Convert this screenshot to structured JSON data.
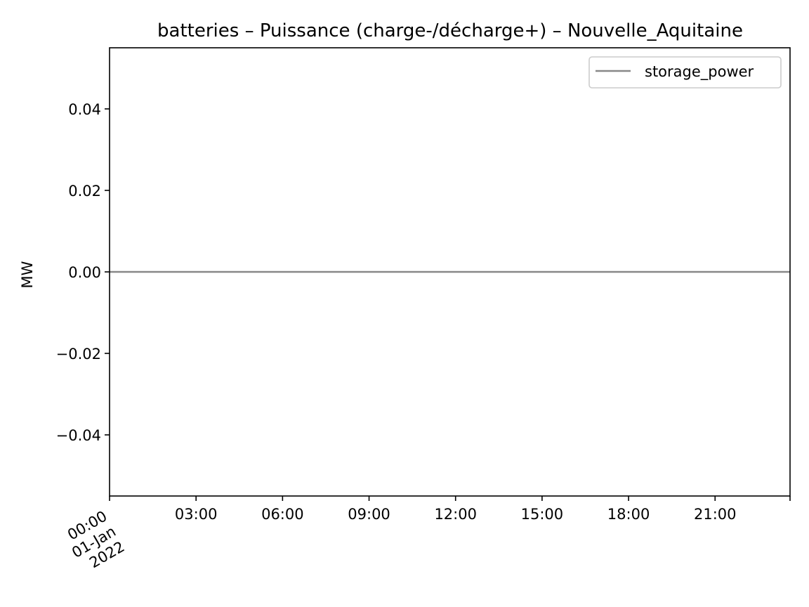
{
  "chart_data": {
    "type": "line",
    "title": "batteries – Puissance (charge-/décharge+) – Nouvelle_Aquitaine",
    "xlabel": "",
    "ylabel": "MW",
    "x_tick_labels": [
      [
        "00:00",
        "01-Jan",
        "2022"
      ],
      [
        "03:00"
      ],
      [
        "06:00"
      ],
      [
        "09:00"
      ],
      [
        "12:00"
      ],
      [
        "15:00"
      ],
      [
        "18:00"
      ],
      [
        "21:00"
      ]
    ],
    "x_tick_hours": [
      0,
      3,
      6,
      9,
      12,
      15,
      18,
      21
    ],
    "xlim_hours": [
      0,
      23.6
    ],
    "xlim_dates": [
      "2022-01-01 00:00",
      "2022-01-01 23:36"
    ],
    "y_ticks": [
      0.04,
      0.02,
      0.0,
      -0.02,
      -0.04
    ],
    "y_tick_labels": [
      "0.04",
      "0.02",
      "0.00",
      "−0.02",
      "−0.04"
    ],
    "ylim": [
      -0.055,
      0.055
    ],
    "grid": false,
    "legend_position": "upper right",
    "series": [
      {
        "name": "storage_power",
        "color": "#888888",
        "x": [
          "2022-01-01 00:00",
          "2022-01-01 23:00"
        ],
        "values": [
          0.0,
          0.0
        ]
      }
    ]
  }
}
